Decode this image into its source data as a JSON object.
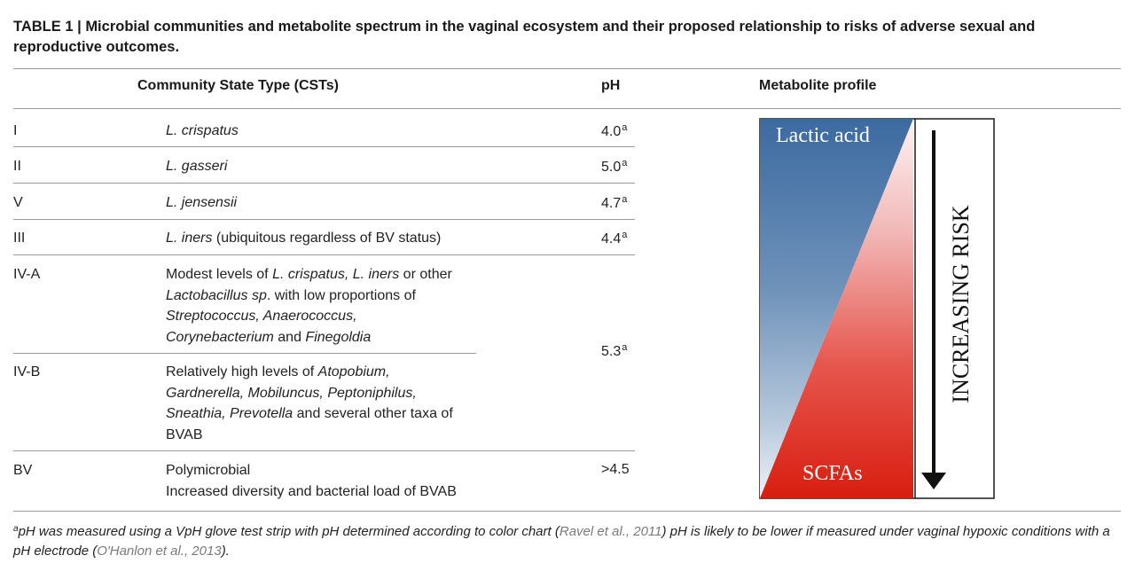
{
  "caption": "TABLE 1 | Microbial communities and metabolite spectrum in the vaginal ecosystem and their proposed relationship to risks of adverse sexual and reproductive outcomes.",
  "headers": {
    "cst": "Community State Type (CSTs)",
    "ph": "pH",
    "profile": "Metabolite profile"
  },
  "rows": {
    "r1": {
      "cst": "I",
      "desc_italic": "L. crispatus",
      "ph": "4.0",
      "ph_sup": "a"
    },
    "r2": {
      "cst": "II",
      "desc_italic": "L. gasseri",
      "ph": "5.0",
      "ph_sup": "a"
    },
    "r3": {
      "cst": "V",
      "desc_italic": "L. jensensii",
      "ph": "4.7",
      "ph_sup": "a"
    },
    "r4": {
      "cst": "III",
      "desc_italic": "L. iners",
      "desc_rest": " (ubiquitous regardless of BV status)",
      "ph": "4.4",
      "ph_sup": "a"
    },
    "r5": {
      "cst": "IV-A",
      "t1": "Modest levels of ",
      "i1": "L. crispatus, L. iners",
      "t2": " or other",
      "i2": "Lactobacillus sp",
      "t3": ". with low proportions of",
      "i3": "Streptococcus, Anaerococcus,",
      "i4": "Corynebacterium",
      "t4": " and ",
      "i5": "Finegoldia"
    },
    "r6": {
      "cst": "IV-B",
      "t1": "Relatively high levels of ",
      "i1": "Atopobium,",
      "i2": "Gardnerella, Mobiluncus, Peptoniphilus,",
      "i3": "Sneathia, Prevotella",
      "t2": " and several other taxa of",
      "t3": "BVAB"
    },
    "r56_ph": "5.3",
    "r56_ph_sup": "a",
    "r7": {
      "cst": "BV",
      "line1": "Polymicrobial",
      "line2": "Increased diversity and bacterial load of BVAB",
      "ph": ">4.5"
    }
  },
  "profile": {
    "top_label": "Lactic acid",
    "bottom_label": "SCFAs",
    "side_label": "INCREASING RISK",
    "colors": {
      "blue": "#3c6aa0",
      "red": "#d81e10",
      "border": "#1a1a1a"
    }
  },
  "footnote": {
    "sup": "a",
    "t1": "pH was measured using a VpH glove test strip with pH determined according to color chart (",
    "ref1": "Ravel et al., 2011",
    "t2": ") pH is likely to be lower if measured under vaginal hypoxic conditions with a pH electrode (",
    "ref2": "O'Hanlon et al., 2013",
    "t3": ")."
  }
}
